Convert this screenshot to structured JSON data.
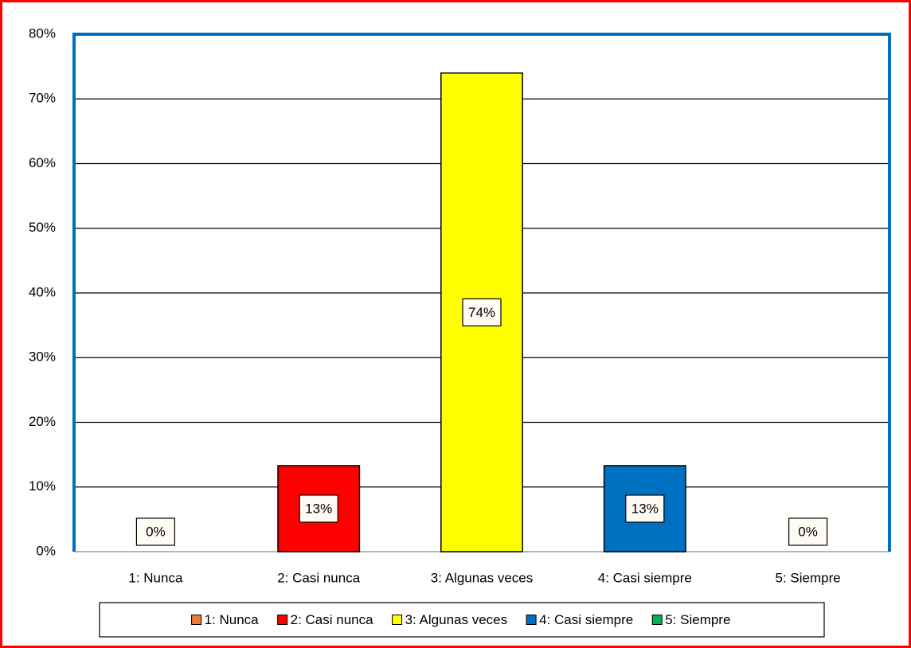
{
  "chart_data": {
    "type": "bar",
    "categories": [
      "1: Nunca",
      "2: Casi nunca",
      "3: Algunas veces",
      "4: Casi siempre",
      "5: Siempre"
    ],
    "values": [
      0,
      13.3,
      74,
      13.3,
      0
    ],
    "value_labels": [
      "0%",
      "13%",
      "74%",
      "13%",
      "0%"
    ],
    "colors": [
      "#ed7d31",
      "#ff0000",
      "#ffff00",
      "#0070c0",
      "#00b050"
    ],
    "ylim": [
      0,
      80
    ],
    "yticks": [
      {
        "value": 0,
        "label": "0%"
      },
      {
        "value": 10,
        "label": "10%"
      },
      {
        "value": 20,
        "label": "20%"
      },
      {
        "value": 30,
        "label": "30%"
      },
      {
        "value": 40,
        "label": "40%"
      },
      {
        "value": 50,
        "label": "50%"
      },
      {
        "value": 60,
        "label": "60%"
      },
      {
        "value": 70,
        "label": "70%"
      },
      {
        "value": 80,
        "label": "80%"
      }
    ],
    "grid": true,
    "legend": "bottom"
  }
}
